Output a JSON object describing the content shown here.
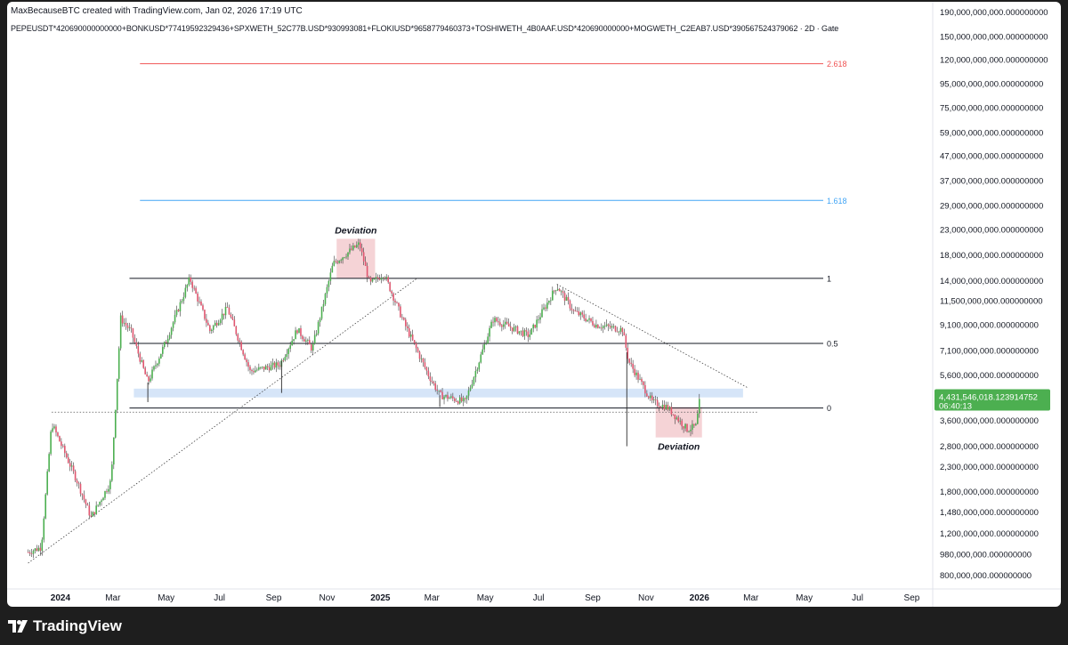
{
  "header": {
    "attribution": "MaxBecauseBTC created with TradingView.com, Jan 02, 2026 17:19 UTC",
    "symbol": "PEPEUSDT*420690000000000+BONKUSD*77419592329436+SPXWETH_52C77B.USD*930993081+FLOKIUSD*9658779460373+TOSHIWETH_4B0AAF.USD*420690000000+MOGWETH_C2EAB7.USD*390567524379062 · 2D · Gate"
  },
  "footer": {
    "brand": "TradingView"
  },
  "colors": {
    "up": "#4caf50",
    "down": "#e0566f",
    "fib_2618": "#f05454",
    "fib_1618": "#42a5f5",
    "level": "#131722",
    "zone": "#cfe0f7",
    "deviation_box": "#f2c4c8",
    "price_tag": "#4caf50"
  },
  "icons": {
    "brand_logo": "tradingview-logo-icon"
  },
  "chart_data": {
    "type": "candlestick",
    "title": "",
    "xlabel": "",
    "ylabel": "",
    "y_scale": "log",
    "ylim": [
      700000000,
      210000000000
    ],
    "xlim": [
      "2023-11-01",
      "2026-09-25"
    ],
    "grid": false,
    "x_ticks": [
      {
        "date": "2024-01-01",
        "label": "2024",
        "bold": true
      },
      {
        "date": "2024-03-01",
        "label": "Mar"
      },
      {
        "date": "2024-05-01",
        "label": "May"
      },
      {
        "date": "2024-07-01",
        "label": "Jul"
      },
      {
        "date": "2024-09-01",
        "label": "Sep"
      },
      {
        "date": "2024-11-01",
        "label": "Nov"
      },
      {
        "date": "2025-01-01",
        "label": "2025",
        "bold": true
      },
      {
        "date": "2025-03-01",
        "label": "Mar"
      },
      {
        "date": "2025-05-01",
        "label": "May"
      },
      {
        "date": "2025-07-01",
        "label": "Jul"
      },
      {
        "date": "2025-09-01",
        "label": "Sep"
      },
      {
        "date": "2025-11-01",
        "label": "Nov"
      },
      {
        "date": "2026-01-01",
        "label": "2026",
        "bold": true
      },
      {
        "date": "2026-03-01",
        "label": "Mar"
      },
      {
        "date": "2026-05-01",
        "label": "May"
      },
      {
        "date": "2026-07-01",
        "label": "Jul"
      },
      {
        "date": "2026-09-01",
        "label": "Sep"
      }
    ],
    "y_ticks": [
      {
        "value": 190000000000,
        "label": "190,000,000,000.000000000"
      },
      {
        "value": 150000000000,
        "label": "150,000,000,000.000000000"
      },
      {
        "value": 120000000000,
        "label": "120,000,000,000.000000000"
      },
      {
        "value": 95000000000,
        "label": "95,000,000,000.000000000"
      },
      {
        "value": 75000000000,
        "label": "75,000,000,000.000000000"
      },
      {
        "value": 59000000000,
        "label": "59,000,000,000.000000000"
      },
      {
        "value": 47000000000,
        "label": "47,000,000,000.000000000"
      },
      {
        "value": 37000000000,
        "label": "37,000,000,000.000000000"
      },
      {
        "value": 29000000000,
        "label": "29,000,000,000.000000000"
      },
      {
        "value": 23000000000,
        "label": "23,000,000,000.000000000"
      },
      {
        "value": 18000000000,
        "label": "18,000,000,000.000000000"
      },
      {
        "value": 14000000000,
        "label": "14,000,000,000.000000000"
      },
      {
        "value": 11500000000,
        "label": "11,500,000,000.000000000"
      },
      {
        "value": 9100000000,
        "label": "9,100,000,000.000000000"
      },
      {
        "value": 7100000000,
        "label": "7,100,000,000.000000000"
      },
      {
        "value": 5600000000,
        "label": "5,600,000,000.000000000"
      },
      {
        "value": 3600000000,
        "label": "3,600,000,000.000000000"
      },
      {
        "value": 2800000000,
        "label": "2,800,000,000.000000000"
      },
      {
        "value": 2300000000,
        "label": "2,300,000,000.000000000"
      },
      {
        "value": 1800000000,
        "label": "1,800,000,000.000000000"
      },
      {
        "value": 1480000000,
        "label": "1,480,000,000.000000000"
      },
      {
        "value": 1200000000,
        "label": "1,200,000,000.000000000"
      },
      {
        "value": 980000000,
        "label": "980,000,000.000000000"
      },
      {
        "value": 800000000,
        "label": "800,000,000.000000000"
      }
    ],
    "current_price": {
      "value": 4431546018.123915,
      "label": "4,431,546,018.123914752",
      "countdown": "06:40:13"
    },
    "price_anchors": [
      {
        "date": "2023-11-25",
        "price": 1000000000
      },
      {
        "date": "2023-12-10",
        "price": 1050000000
      },
      {
        "date": "2023-12-22",
        "price": 3500000000
      },
      {
        "date": "2024-01-20",
        "price": 2000000000
      },
      {
        "date": "2024-02-05",
        "price": 1400000000
      },
      {
        "date": "2024-02-28",
        "price": 2000000000
      },
      {
        "date": "2024-03-10",
        "price": 9700000000
      },
      {
        "date": "2024-03-22",
        "price": 8500000000
      },
      {
        "date": "2024-04-10",
        "price": 5200000000
      },
      {
        "date": "2024-05-01",
        "price": 7800000000
      },
      {
        "date": "2024-05-28",
        "price": 14300000000
      },
      {
        "date": "2024-06-20",
        "price": 8600000000
      },
      {
        "date": "2024-07-10",
        "price": 10700000000
      },
      {
        "date": "2024-08-05",
        "price": 5800000000
      },
      {
        "date": "2024-09-08",
        "price": 6200000000
      },
      {
        "date": "2024-09-28",
        "price": 8700000000
      },
      {
        "date": "2024-10-15",
        "price": 7200000000
      },
      {
        "date": "2024-11-08",
        "price": 16500000000
      },
      {
        "date": "2024-12-08",
        "price": 20000000000
      },
      {
        "date": "2024-12-20",
        "price": 13500000000
      },
      {
        "date": "2025-01-05",
        "price": 15000000000
      },
      {
        "date": "2025-01-28",
        "price": 9300000000
      },
      {
        "date": "2025-02-25",
        "price": 5600000000
      },
      {
        "date": "2025-03-10",
        "price": 4600000000
      },
      {
        "date": "2025-04-08",
        "price": 4300000000
      },
      {
        "date": "2025-05-10",
        "price": 9600000000
      },
      {
        "date": "2025-06-20",
        "price": 8200000000
      },
      {
        "date": "2025-07-22",
        "price": 13300000000
      },
      {
        "date": "2025-08-10",
        "price": 10400000000
      },
      {
        "date": "2025-09-05",
        "price": 9100000000
      },
      {
        "date": "2025-10-05",
        "price": 8700000000
      },
      {
        "date": "2025-10-12",
        "price": 6400000000
      },
      {
        "date": "2025-11-08",
        "price": 4300000000
      },
      {
        "date": "2025-11-25",
        "price": 4100000000
      },
      {
        "date": "2025-12-18",
        "price": 3300000000
      },
      {
        "date": "2025-12-28",
        "price": 3400000000
      },
      {
        "date": "2026-01-02",
        "price": 4431546018
      }
    ],
    "wicks": [
      {
        "date": "2025-10-10",
        "low": 2800000000
      },
      {
        "date": "2024-04-10",
        "low": 4300000000
      },
      {
        "date": "2024-09-10",
        "low": 4700000000
      },
      {
        "date": "2025-03-10",
        "low": 4100000000
      }
    ],
    "fib_levels": [
      {
        "value": 115000000000,
        "label": "2.618",
        "color": "#f05454",
        "start": "2024-04-01"
      },
      {
        "value": 30500000000,
        "label": "1.618",
        "color": "#42a5f5",
        "start": "2024-04-01"
      },
      {
        "value": 14300000000,
        "label": "1",
        "color": "#131722",
        "start": "2024-03-20"
      },
      {
        "value": 7600000000,
        "label": "0.5",
        "color": "#131722",
        "start": "2024-03-20"
      },
      {
        "value": 4060000000,
        "label": "0",
        "color": "#131722",
        "start": "2024-03-20"
      }
    ],
    "zones": [
      {
        "start": "2024-03-25",
        "end": "2026-02-20",
        "high": 4900000000,
        "low": 4500000000,
        "color": "#cfe0f7"
      }
    ],
    "dotted_levels": [
      {
        "value": 3900000000,
        "start": "2023-12-22",
        "end": "2026-03-10"
      }
    ],
    "trendlines": [
      {
        "x1": "2023-11-25",
        "y1": 900000000,
        "x2": "2025-02-12",
        "y2": 14300000000
      },
      {
        "x1": "2025-07-22",
        "y1": 13500000000,
        "x2": "2026-02-25",
        "y2": 4950000000
      }
    ],
    "annotations": [
      {
        "label": "Deviation",
        "start": "2024-11-12",
        "end": "2024-12-26",
        "high": 21000000000,
        "low": 14300000000,
        "text_position": "above"
      },
      {
        "label": "Deviation",
        "start": "2025-11-12",
        "end": "2026-01-04",
        "high": 4100000000,
        "low": 3050000000,
        "text_position": "below"
      }
    ]
  }
}
